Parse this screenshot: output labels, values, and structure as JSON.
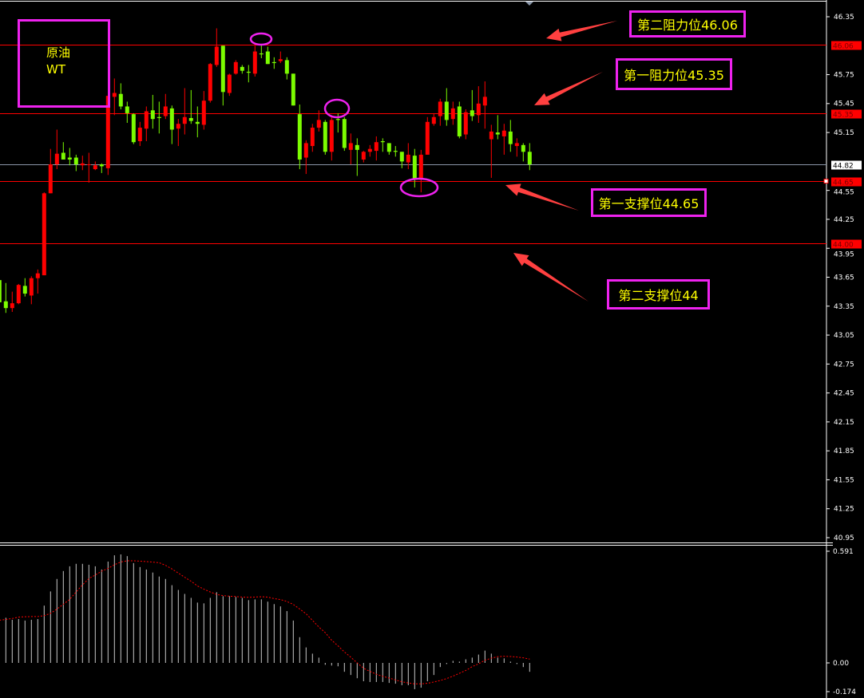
{
  "chart_data": [
    {
      "type": "candlestick",
      "title": "",
      "instrument_label": {
        "line1": "原油",
        "line2": "WT"
      },
      "up_color": "#ff0000",
      "down_color": "#7cfc00",
      "ylim": [
        40.95,
        46.35
      ],
      "yticks": [
        "46.35",
        "45.75",
        "45.45",
        "45.15",
        "44.55",
        "44.25",
        "43.95",
        "43.65",
        "43.35",
        "43.05",
        "42.75",
        "42.45",
        "42.15",
        "41.85",
        "41.55",
        "41.25",
        "40.95"
      ],
      "levels": [
        {
          "value": 46.06,
          "label": "46.06",
          "color": "#ff0000"
        },
        {
          "value": 45.35,
          "label": "45.35",
          "color": "#ff0000"
        },
        {
          "value": 44.82,
          "label": "44.82",
          "color": "#8a96a8",
          "current": true
        },
        {
          "value": 44.65,
          "label": "44.65",
          "color": "#ff0000"
        },
        {
          "value": 44.0,
          "label": "44.00",
          "color": "#ff0000"
        }
      ],
      "annotations": [
        {
          "text": "第二阻力位46.06",
          "level": 46.06
        },
        {
          "text": "第一阻力位45.35",
          "level": 45.35
        },
        {
          "text": "第一支撑位44.65",
          "level": 44.65
        },
        {
          "text": "第二支撑位44",
          "level": 44.0
        }
      ],
      "annotation_border_color": "#ee22ee",
      "annotation_text_color": "#ffff00",
      "arrow_color": "#ff4040",
      "ohlc": [
        [
          43.62,
          43.64,
          43.37,
          43.39
        ],
        [
          43.4,
          43.59,
          43.28,
          43.33
        ],
        [
          43.33,
          43.5,
          43.29,
          43.38
        ],
        [
          43.38,
          43.58,
          43.37,
          43.57
        ],
        [
          43.56,
          43.64,
          43.45,
          43.48
        ],
        [
          43.46,
          43.66,
          43.37,
          43.64
        ],
        [
          43.64,
          43.73,
          43.48,
          43.69
        ],
        [
          43.67,
          44.53,
          43.67,
          44.52
        ],
        [
          44.52,
          44.98,
          44.52,
          44.82
        ],
        [
          44.82,
          45.18,
          44.77,
          44.93
        ],
        [
          44.94,
          45.05,
          44.87,
          44.87
        ],
        [
          44.89,
          44.99,
          44.81,
          44.87
        ],
        [
          44.89,
          44.92,
          44.75,
          44.82
        ],
        [
          44.81,
          44.91,
          44.76,
          44.83
        ],
        [
          44.82,
          44.94,
          44.63,
          44.82
        ],
        [
          44.77,
          44.85,
          44.76,
          44.81
        ],
        [
          44.82,
          44.83,
          44.73,
          44.8
        ],
        [
          44.78,
          45.53,
          44.71,
          45.53
        ],
        [
          45.52,
          45.71,
          45.33,
          45.56
        ],
        [
          45.55,
          45.66,
          45.39,
          45.42
        ],
        [
          45.42,
          45.47,
          45.25,
          45.35
        ],
        [
          45.34,
          45.35,
          45.03,
          45.05
        ],
        [
          45.06,
          45.26,
          45.01,
          45.2
        ],
        [
          45.19,
          45.42,
          45.06,
          45.37
        ],
        [
          45.38,
          45.54,
          45.19,
          45.29
        ],
        [
          45.31,
          45.47,
          45.14,
          45.3
        ],
        [
          45.32,
          45.55,
          45.29,
          45.42
        ],
        [
          45.4,
          45.43,
          45.03,
          45.18
        ],
        [
          45.19,
          45.29,
          45.01,
          45.24
        ],
        [
          45.24,
          45.61,
          45.13,
          45.31
        ],
        [
          45.3,
          45.59,
          45.24,
          45.27
        ],
        [
          45.26,
          45.42,
          45.1,
          45.24
        ],
        [
          45.23,
          45.58,
          45.18,
          45.48
        ],
        [
          45.48,
          45.87,
          45.46,
          45.86
        ],
        [
          45.85,
          46.23,
          45.83,
          46.04
        ],
        [
          46.05,
          46.05,
          45.43,
          45.57
        ],
        [
          45.56,
          45.76,
          45.53,
          45.75
        ],
        [
          45.76,
          45.9,
          45.75,
          45.88
        ],
        [
          45.83,
          45.85,
          45.76,
          45.79
        ],
        [
          45.78,
          45.85,
          45.67,
          45.77
        ],
        [
          45.76,
          46.05,
          45.73,
          45.99
        ],
        [
          45.97,
          46.06,
          45.92,
          45.96
        ],
        [
          45.99,
          46.04,
          45.86,
          45.86
        ],
        [
          45.88,
          45.93,
          45.81,
          45.87
        ],
        [
          45.89,
          45.99,
          45.87,
          45.91
        ],
        [
          45.9,
          45.93,
          45.7,
          45.76
        ],
        [
          45.76,
          45.76,
          45.43,
          45.43
        ],
        [
          45.34,
          45.44,
          44.77,
          44.87
        ],
        [
          44.89,
          45.07,
          44.72,
          45.04
        ],
        [
          45.01,
          45.24,
          44.95,
          45.2
        ],
        [
          45.2,
          45.38,
          45.16,
          45.28
        ],
        [
          45.26,
          45.28,
          44.92,
          44.95
        ],
        [
          44.95,
          45.31,
          44.86,
          45.28
        ],
        [
          45.29,
          45.35,
          45.15,
          45.28
        ],
        [
          45.29,
          45.31,
          44.96,
          44.99
        ],
        [
          44.97,
          45.14,
          44.82,
          45.04
        ],
        [
          45.02,
          45.09,
          44.7,
          44.97
        ],
        [
          44.87,
          44.96,
          44.84,
          44.95
        ],
        [
          44.95,
          45.02,
          44.9,
          44.98
        ],
        [
          44.96,
          45.11,
          44.86,
          45.05
        ],
        [
          45.06,
          45.09,
          44.95,
          45.05
        ],
        [
          45.04,
          45.04,
          44.92,
          44.95
        ],
        [
          44.96,
          45.01,
          44.9,
          44.95
        ],
        [
          44.95,
          44.95,
          44.78,
          44.85
        ],
        [
          44.84,
          45.04,
          44.77,
          44.92
        ],
        [
          44.91,
          44.98,
          44.58,
          44.66
        ],
        [
          44.66,
          44.97,
          44.53,
          44.92
        ],
        [
          44.92,
          45.31,
          44.92,
          45.26
        ],
        [
          45.24,
          45.35,
          45.22,
          45.31
        ],
        [
          45.32,
          45.5,
          45.22,
          45.47
        ],
        [
          45.47,
          45.61,
          45.22,
          45.28
        ],
        [
          45.29,
          45.47,
          45.23,
          45.4
        ],
        [
          45.42,
          45.47,
          45.09,
          45.11
        ],
        [
          45.13,
          45.39,
          45.08,
          45.36
        ],
        [
          45.38,
          45.59,
          45.27,
          45.32
        ],
        [
          45.33,
          45.63,
          45.25,
          45.45
        ],
        [
          45.43,
          45.68,
          45.19,
          45.52
        ],
        [
          45.08,
          45.23,
          44.68,
          45.16
        ],
        [
          45.15,
          45.33,
          45.08,
          45.13
        ],
        [
          45.11,
          45.24,
          44.92,
          45.17
        ],
        [
          45.16,
          45.28,
          44.95,
          45.03
        ],
        [
          45.01,
          45.09,
          44.9,
          45.04
        ],
        [
          45.02,
          45.04,
          44.85,
          44.95
        ],
        [
          44.95,
          45.04,
          44.76,
          44.82
        ]
      ]
    },
    {
      "type": "bar",
      "title": "",
      "ylim": [
        -0.174,
        0.591
      ],
      "yticks": [
        "0.591",
        "0.00",
        "-0.174"
      ],
      "histogram_color": "#c8c8c8",
      "signal_color": "#ff0000",
      "histogram": [
        null,
        0.239,
        0.228,
        0.232,
        0.224,
        0.228,
        0.232,
        0.303,
        0.378,
        0.444,
        0.486,
        0.511,
        0.524,
        0.524,
        0.519,
        0.511,
        0.494,
        0.536,
        0.569,
        0.574,
        0.565,
        0.528,
        0.507,
        0.494,
        0.478,
        0.457,
        0.444,
        0.411,
        0.386,
        0.365,
        0.344,
        0.319,
        0.315,
        0.344,
        0.374,
        0.353,
        0.353,
        0.349,
        0.344,
        0.332,
        0.336,
        0.336,
        0.324,
        0.311,
        0.299,
        0.274,
        0.224,
        0.136,
        0.082,
        0.049,
        0.028,
        -0.01,
        -0.014,
        -0.018,
        -0.047,
        -0.064,
        -0.081,
        -0.097,
        -0.101,
        -0.101,
        -0.101,
        -0.106,
        -0.11,
        -0.118,
        -0.118,
        -0.139,
        -0.131,
        -0.097,
        -0.064,
        -0.022,
        -0.006,
        0.011,
        0.007,
        0.019,
        0.028,
        0.044,
        0.065,
        0.049,
        0.028,
        0.024,
        0.007,
        -0.006,
        -0.022,
        -0.047
      ],
      "signal": [
        0.226,
        0.23,
        0.235,
        0.242,
        0.244,
        0.245,
        0.245,
        0.25,
        0.262,
        0.285,
        0.31,
        0.336,
        0.375,
        0.413,
        0.446,
        0.465,
        0.485,
        0.5,
        0.519,
        0.534,
        0.54,
        0.54,
        0.538,
        0.536,
        0.533,
        0.53,
        0.516,
        0.497,
        0.475,
        0.453,
        0.432,
        0.407,
        0.39,
        0.375,
        0.362,
        0.356,
        0.353,
        0.351,
        0.348,
        0.347,
        0.348,
        0.35,
        0.348,
        0.34,
        0.335,
        0.325,
        0.309,
        0.285,
        0.26,
        0.225,
        0.19,
        0.16,
        0.12,
        0.09,
        0.058,
        0.03,
        0.0,
        -0.028,
        -0.045,
        -0.06,
        -0.071,
        -0.08,
        -0.09,
        -0.1,
        -0.106,
        -0.111,
        -0.111,
        -0.108,
        -0.101,
        -0.093,
        -0.083,
        -0.07,
        -0.055,
        -0.04,
        -0.02,
        -0.005,
        0.014,
        0.025,
        0.033,
        0.035,
        0.034,
        0.031,
        0.027,
        0.02
      ]
    }
  ]
}
